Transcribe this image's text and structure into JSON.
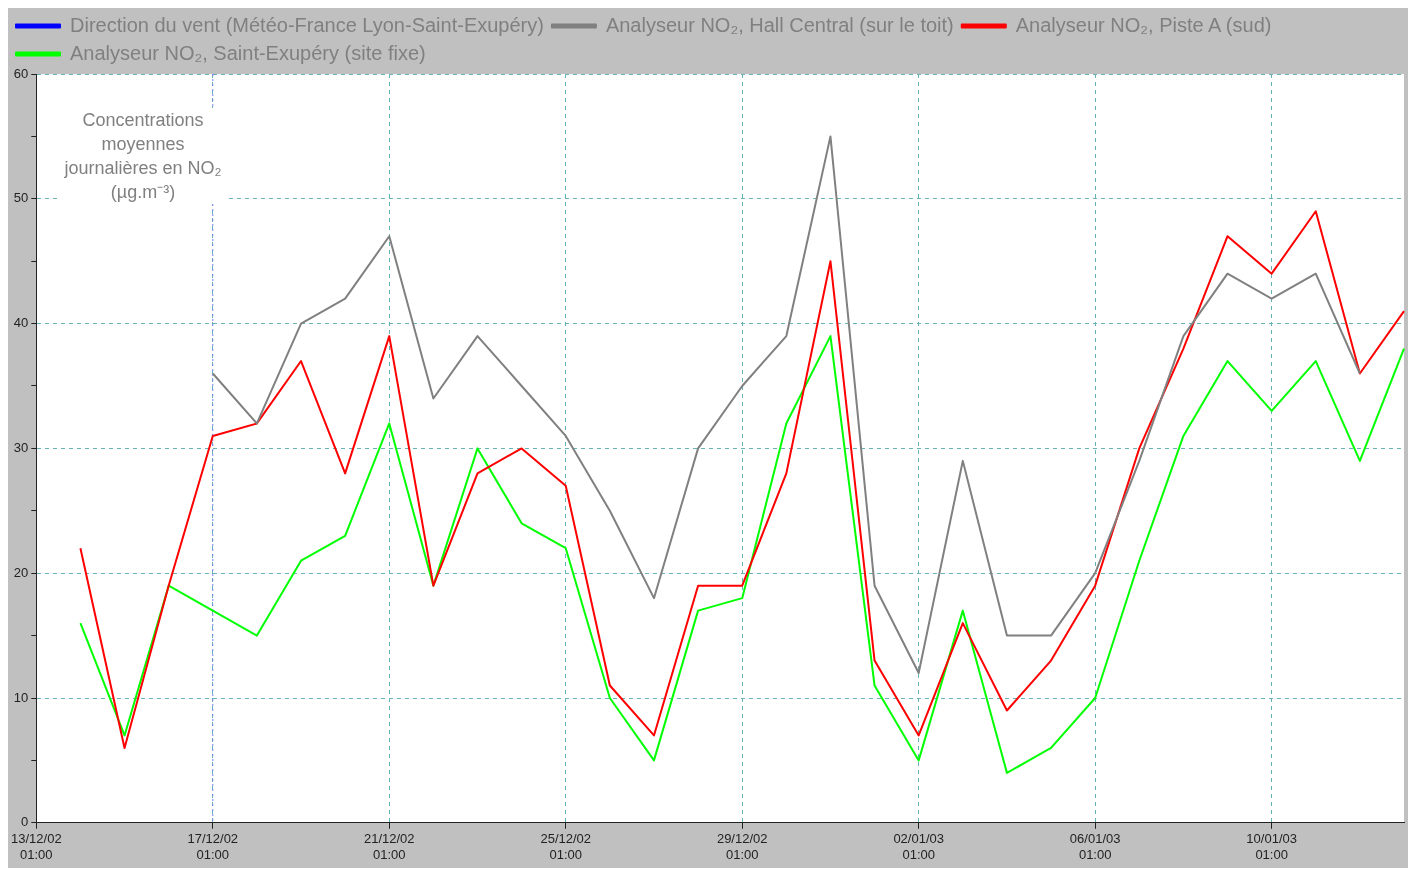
{
  "chart_data": {
    "type": "line",
    "ylabel": "Concentrations moyennes journalières en NO₂ (µg.m⁻³)",
    "categories": [
      "13/12/02 01:00",
      null,
      null,
      null,
      "17/12/02 01:00",
      null,
      null,
      null,
      "21/12/02 01:00",
      null,
      null,
      null,
      "25/12/02 01:00",
      null,
      null,
      null,
      "29/12/02 01:00",
      null,
      null,
      null,
      "02/01/03 01:00",
      null,
      null,
      null,
      "06/01/03 01:00",
      null,
      null,
      null,
      "10/01/03 01:00",
      null,
      null,
      null
    ],
    "series": [
      {
        "name": "Direction du vent (Météo-France Lyon-Saint-Exupéry)",
        "color": "#0000ff",
        "values": [
          null,
          null,
          null,
          null,
          null,
          null,
          null,
          null,
          null,
          null,
          null,
          null,
          null,
          null,
          null,
          null,
          null,
          null,
          null,
          null,
          null,
          null,
          null,
          null,
          null,
          null,
          null,
          null,
          null,
          null,
          null,
          null
        ]
      },
      {
        "name": "Analyseur NO₂, Hall Central (sur le toit)",
        "color": "#808080",
        "values": [
          null,
          null,
          null,
          null,
          36,
          32,
          40,
          42,
          47,
          34,
          39,
          35,
          31,
          25,
          18,
          30,
          35,
          39,
          55,
          19,
          12,
          29,
          15,
          15,
          20,
          29,
          39,
          44,
          42,
          44,
          36,
          null
        ]
      },
      {
        "name": "Analyseur NO₂, Piste A (sud)",
        "color": "#ff0000",
        "values": [
          null,
          22,
          6,
          19,
          31,
          32,
          37,
          28,
          39,
          19,
          28,
          30,
          27,
          11,
          7,
          19,
          19,
          28,
          45,
          13,
          7,
          16,
          9,
          13,
          19,
          30,
          38,
          47,
          44,
          49,
          36,
          41
        ]
      },
      {
        "name": "Analyseur NO₂, Saint-Exupéry (site fixe)",
        "color": "#00ff00",
        "values": [
          null,
          16,
          7,
          19,
          17,
          15,
          21,
          23,
          32,
          19,
          30,
          24,
          22,
          10,
          5,
          17,
          18,
          32,
          39,
          11,
          5,
          17,
          4,
          6,
          10,
          21,
          31,
          37,
          33,
          37,
          29,
          38
        ]
      }
    ],
    "ylim": [
      0,
      60
    ],
    "yticks": [
      0,
      {
        "value": 5,
        "label": null
      },
      10,
      {
        "value": 15,
        "label": null
      },
      20,
      {
        "value": 25,
        "label": null
      },
      30,
      {
        "value": 35,
        "label": null
      },
      40,
      {
        "value": 45,
        "label": null
      },
      50,
      {
        "value": 55,
        "label": null
      },
      60
    ],
    "ref_lines": [
      {
        "axis": "x",
        "value": "17/12/02 01:00",
        "color": "#8080ff",
        "line_style": "dotted"
      }
    ],
    "grid": true,
    "legend": "top left",
    "line_style": "solid",
    "marker": "none"
  }
}
